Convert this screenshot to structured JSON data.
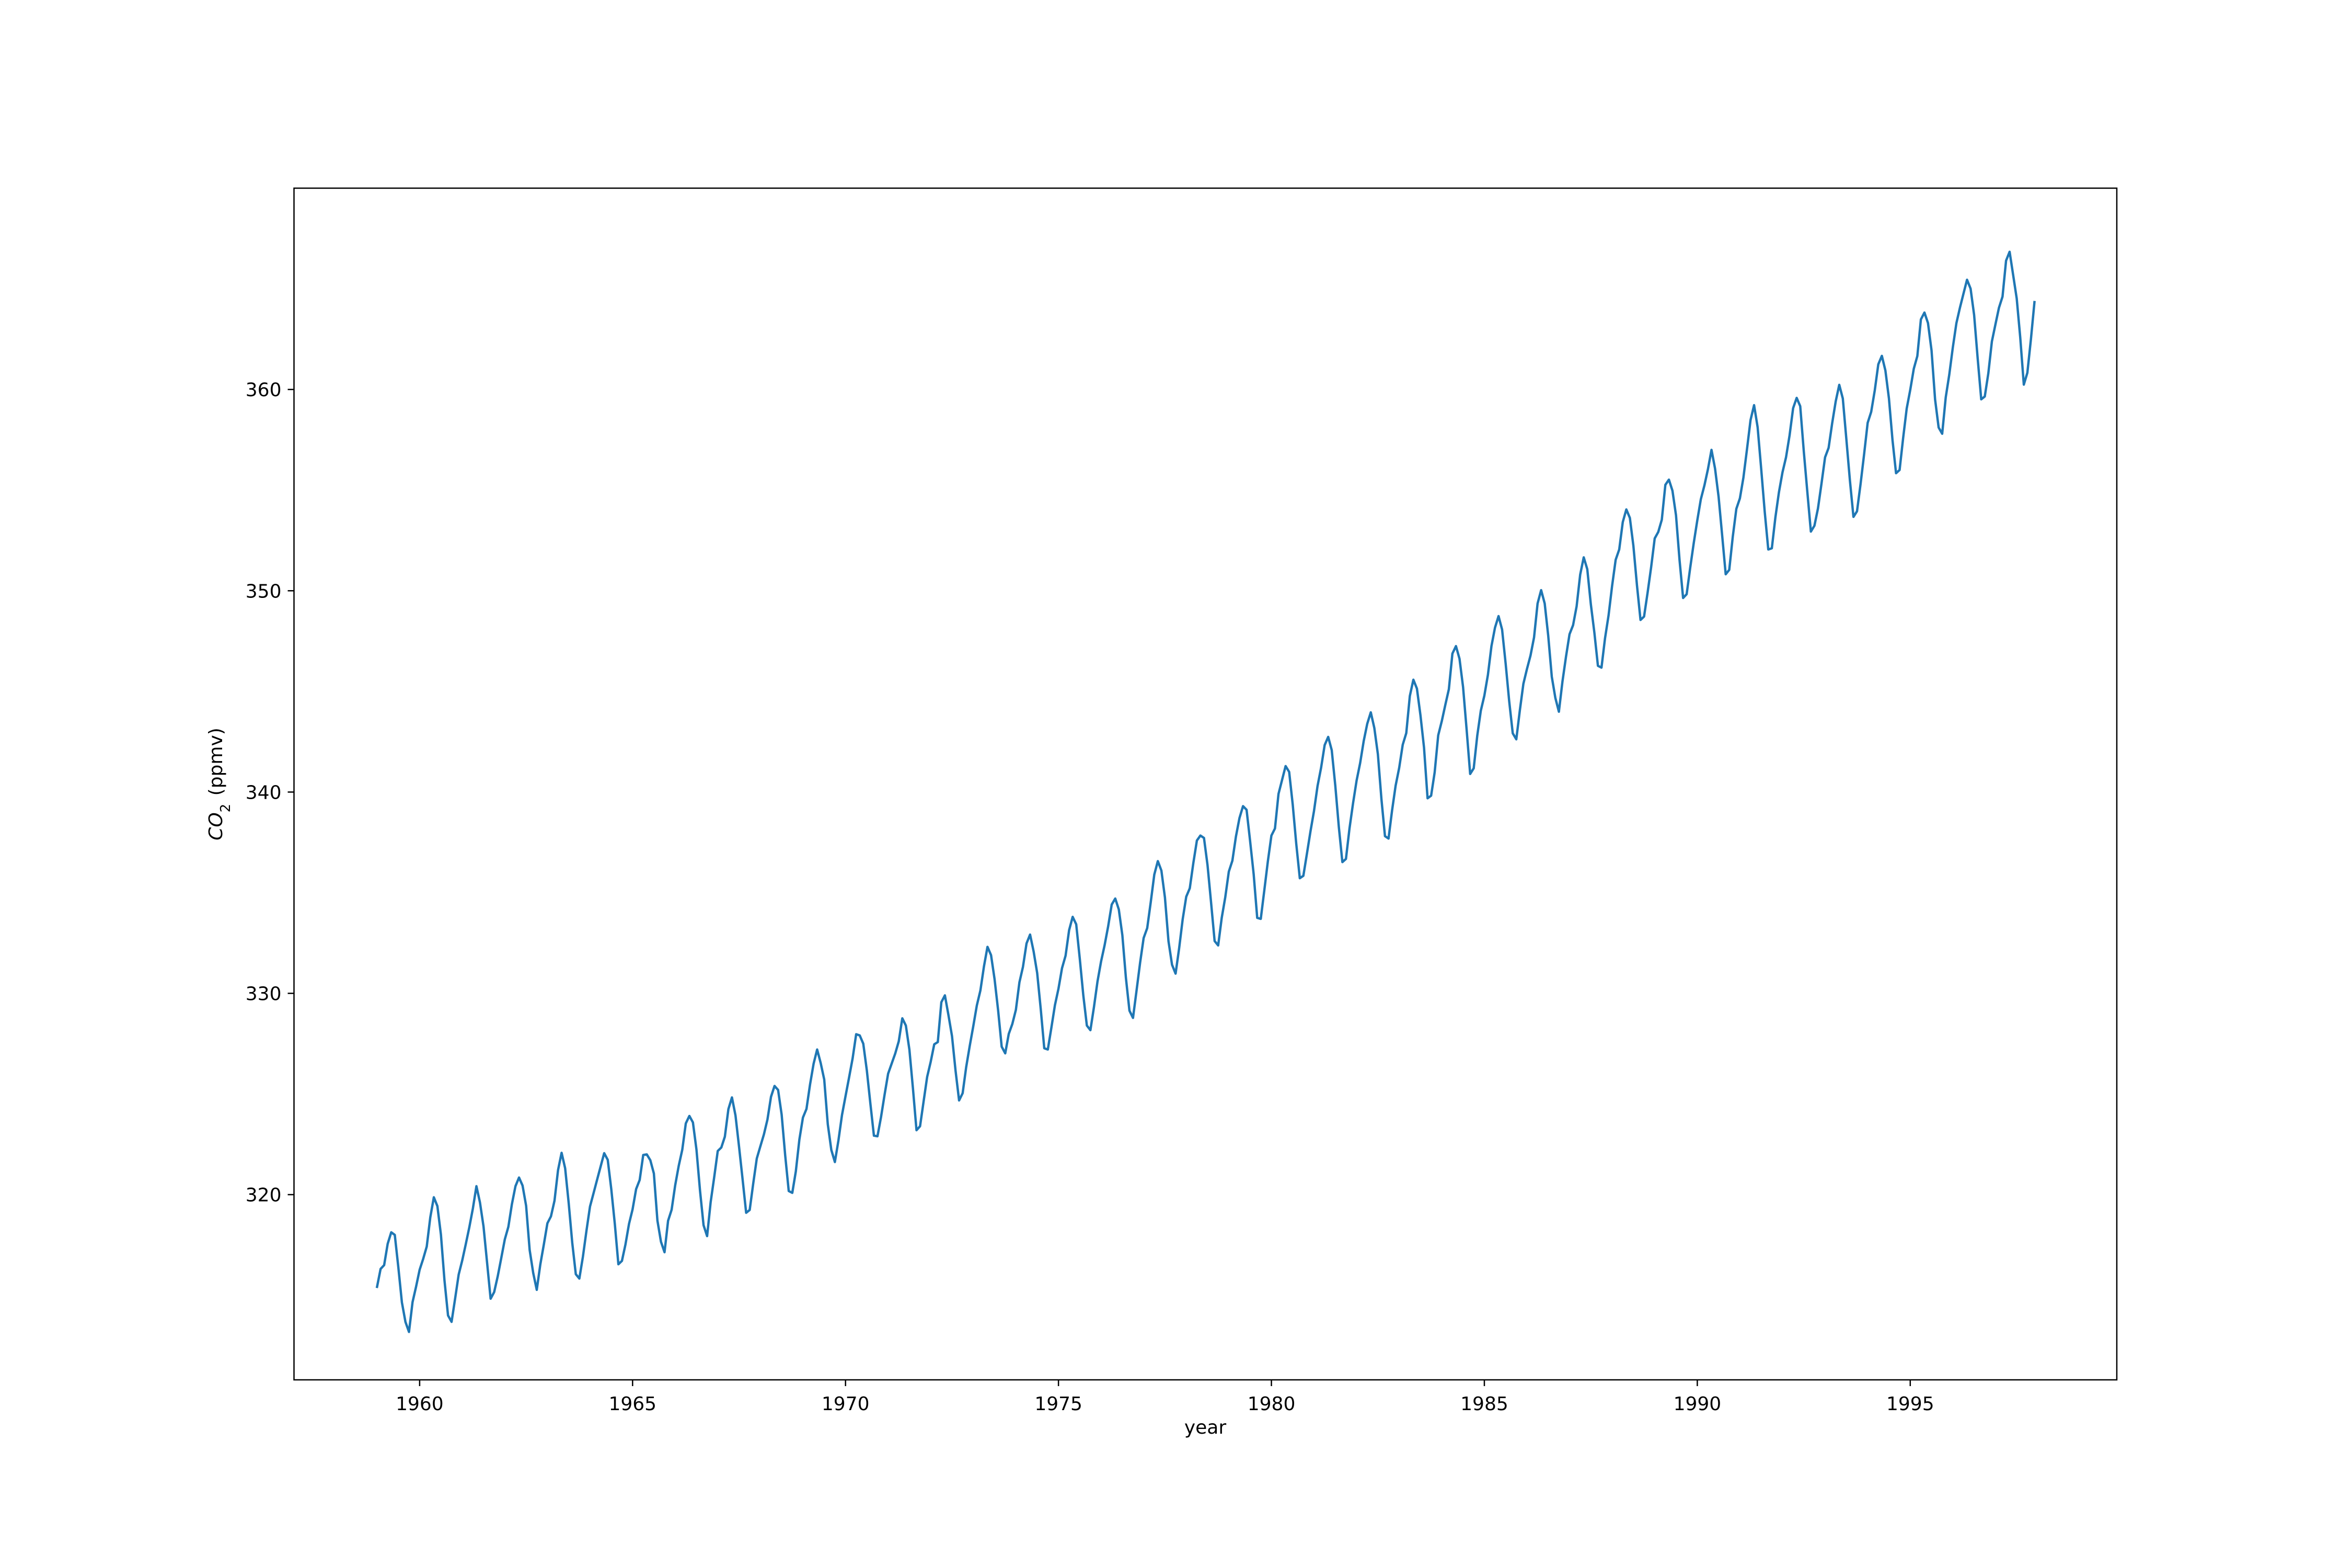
{
  "chart_data": {
    "type": "line",
    "title": "",
    "xlabel": "year",
    "ylabel": {
      "main": "CO",
      "sub": "2",
      "rest": " (ppmv)"
    },
    "xlim": [
      1957.05,
      1999.85
    ],
    "ylim": [
      310.8,
      370.0
    ],
    "xticks": [
      1960,
      1965,
      1970,
      1975,
      1980,
      1985,
      1990,
      1995
    ],
    "xtick_labels": [
      "1960",
      "1965",
      "1970",
      "1975",
      "1980",
      "1985",
      "1990",
      "1995"
    ],
    "yticks": [
      320,
      330,
      340,
      350,
      360
    ],
    "ytick_labels": [
      "320",
      "330",
      "340",
      "350",
      "360"
    ],
    "grid": false,
    "legend": "none",
    "series": [
      {
        "color": "#1f77b4",
        "x_start": 1959.0,
        "x_step": 0.0833333,
        "values": [
          315.42,
          316.31,
          316.5,
          317.56,
          318.13,
          318.0,
          316.39,
          314.65,
          313.68,
          313.18,
          314.66,
          315.43,
          316.27,
          316.81,
          317.42,
          318.87,
          319.87,
          319.43,
          318.01,
          315.74,
          314.0,
          313.68,
          314.84,
          316.03,
          316.73,
          317.54,
          318.38,
          319.31,
          320.42,
          319.61,
          318.42,
          316.63,
          314.83,
          315.16,
          315.94,
          316.85,
          317.78,
          318.4,
          319.53,
          320.42,
          320.85,
          320.45,
          319.45,
          317.25,
          316.11,
          315.27,
          316.53,
          317.53,
          318.58,
          318.92,
          319.7,
          321.22,
          322.08,
          321.31,
          319.58,
          317.61,
          316.05,
          315.83,
          316.91,
          318.2,
          319.41,
          320.07,
          320.74,
          321.4,
          322.06,
          321.73,
          320.27,
          318.54,
          316.54,
          316.71,
          317.53,
          318.55,
          319.27,
          320.28,
          320.73,
          321.97,
          322.0,
          321.71,
          321.05,
          318.71,
          317.66,
          317.14,
          318.7,
          319.25,
          320.46,
          321.43,
          322.23,
          323.54,
          323.91,
          323.59,
          322.24,
          320.2,
          318.48,
          317.94,
          319.63,
          320.87,
          322.17,
          322.34,
          322.88,
          324.25,
          324.83,
          323.93,
          322.38,
          320.76,
          319.1,
          319.24,
          320.56,
          321.8,
          322.4,
          322.99,
          323.73,
          324.86,
          325.4,
          325.2,
          323.98,
          321.95,
          320.18,
          320.09,
          321.16,
          322.74,
          323.83,
          324.26,
          325.47,
          326.5,
          327.21,
          326.54,
          325.72,
          323.5,
          322.22,
          321.62,
          322.69,
          323.95,
          324.89,
          325.82,
          326.77,
          327.97,
          327.91,
          327.5,
          326.18,
          324.53,
          322.93,
          322.9,
          323.85,
          324.96,
          326.01,
          326.51,
          327.01,
          327.62,
          328.76,
          328.4,
          327.2,
          325.27,
          323.2,
          323.4,
          324.63,
          325.85,
          326.6,
          327.47,
          327.58,
          329.56,
          329.9,
          328.92,
          327.88,
          326.16,
          324.68,
          325.04,
          326.34,
          327.39,
          328.37,
          329.4,
          330.14,
          331.33,
          332.31,
          331.9,
          330.7,
          329.15,
          327.35,
          327.02,
          327.99,
          328.48,
          329.18,
          330.55,
          331.32,
          332.48,
          332.92,
          332.08,
          331.01,
          329.23,
          327.27,
          327.21,
          328.29,
          329.41,
          330.23,
          331.25,
          331.87,
          333.14,
          333.8,
          333.43,
          331.73,
          329.9,
          328.4,
          328.17,
          329.32,
          330.59,
          331.58,
          332.39,
          333.33,
          334.41,
          334.71,
          334.17,
          332.89,
          330.77,
          329.14,
          328.78,
          330.14,
          331.52,
          332.75,
          333.24,
          334.53,
          335.9,
          336.57,
          336.1,
          334.76,
          332.59,
          331.42,
          330.98,
          332.24,
          333.68,
          334.8,
          335.22,
          336.47,
          337.59,
          337.84,
          337.72,
          336.37,
          334.51,
          332.6,
          332.38,
          333.75,
          334.78,
          336.05,
          336.59,
          337.79,
          338.71,
          339.3,
          339.12,
          337.56,
          335.92,
          333.75,
          333.7,
          335.12,
          336.56,
          337.84,
          338.19,
          339.91,
          340.6,
          341.29,
          341.0,
          339.39,
          337.43,
          335.72,
          335.84,
          336.93,
          338.04,
          339.06,
          340.3,
          341.21,
          342.33,
          342.74,
          342.08,
          340.32,
          338.26,
          336.52,
          336.68,
          338.19,
          339.44,
          340.57,
          341.44,
          342.53,
          343.39,
          343.96,
          343.18,
          341.88,
          339.65,
          337.81,
          337.69,
          339.09,
          340.32,
          341.2,
          342.35,
          342.93,
          344.77,
          345.58,
          345.14,
          343.81,
          342.21,
          339.69,
          339.82,
          340.98,
          342.82,
          343.52,
          344.33,
          345.11,
          346.88,
          347.25,
          346.62,
          345.22,
          343.11,
          340.9,
          341.18,
          342.8,
          344.04,
          344.79,
          345.82,
          347.25,
          348.17,
          348.74,
          348.07,
          346.38,
          344.51,
          342.92,
          342.62,
          344.06,
          345.38,
          346.11,
          346.78,
          347.68,
          349.37,
          350.03,
          349.37,
          347.76,
          345.73,
          344.68,
          343.99,
          345.48,
          346.72,
          347.84,
          348.29,
          349.23,
          350.8,
          351.66,
          351.07,
          349.33,
          347.92,
          346.27,
          346.18,
          347.64,
          348.78,
          350.25,
          351.54,
          352.05,
          353.41,
          354.04,
          353.62,
          352.22,
          350.27,
          348.55,
          348.72,
          349.91,
          351.18,
          352.6,
          352.92,
          353.53,
          355.26,
          355.52,
          354.97,
          353.75,
          351.52,
          349.64,
          349.83,
          351.14,
          352.37,
          353.5,
          354.55,
          355.23,
          356.04,
          357.0,
          356.07,
          354.67,
          352.76,
          350.82,
          351.04,
          352.69,
          354.07,
          354.59,
          355.63,
          357.03,
          358.48,
          359.22,
          358.12,
          356.06,
          353.92,
          352.05,
          352.11,
          353.64,
          354.89,
          355.88,
          356.63,
          357.72,
          359.07,
          359.58,
          359.17,
          356.94,
          354.92,
          352.94,
          353.23,
          354.09,
          355.33,
          356.63,
          357.1,
          358.32,
          359.41,
          360.23,
          359.55,
          357.53,
          355.48,
          353.67,
          353.95,
          355.3,
          356.78,
          358.34,
          358.89,
          359.95,
          361.25,
          361.67,
          360.94,
          359.55,
          357.49,
          355.84,
          356.0,
          357.59,
          359.05,
          359.98,
          361.03,
          361.66,
          363.48,
          363.82,
          363.3,
          361.94,
          359.5,
          358.11,
          357.8,
          359.61,
          360.74,
          362.09,
          363.29,
          364.06,
          364.76,
          365.45,
          365.01,
          363.7,
          361.54,
          359.51,
          359.65,
          360.8,
          362.38,
          363.23,
          364.06,
          364.61,
          366.4,
          366.84,
          365.68,
          364.52,
          362.57,
          360.24,
          360.83,
          362.49,
          364.34
        ]
      }
    ]
  }
}
